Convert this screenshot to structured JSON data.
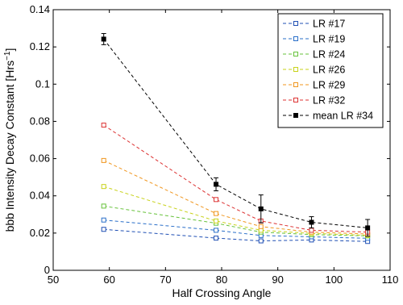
{
  "chart_data": {
    "type": "line",
    "title": "",
    "xlabel": "Half Crossing Angle",
    "ylabel": "bbb Intensity Decay Constant [Hrs",
    "ylabel_sup": "−1",
    "ylabel_end": "]",
    "xlim": [
      50,
      110
    ],
    "ylim": [
      0,
      0.14
    ],
    "xticks": [
      50,
      60,
      70,
      80,
      90,
      100,
      110
    ],
    "yticks": [
      0,
      0.02,
      0.04,
      0.06,
      0.08,
      0.1,
      0.12,
      0.14
    ],
    "ytick_labels": [
      "0",
      "0.02",
      "0.04",
      "0.06",
      "0.08",
      "0.1",
      "0.12",
      "0.14"
    ],
    "grid": false,
    "legend_position": "top-right",
    "series": [
      {
        "name": "LR #17",
        "color": "#1f4fb4",
        "x": [
          59,
          79,
          87,
          96,
          106
        ],
        "y": [
          0.022,
          0.0173,
          0.0158,
          0.0163,
          0.0155
        ]
      },
      {
        "name": "LR #19",
        "color": "#2a6fc9",
        "x": [
          59,
          79,
          87,
          96,
          106
        ],
        "y": [
          0.027,
          0.0215,
          0.0187,
          0.018,
          0.0172
        ]
      },
      {
        "name": "LR #24",
        "color": "#66c23a",
        "x": [
          59,
          79,
          87,
          96,
          106
        ],
        "y": [
          0.0345,
          0.0253,
          0.0205,
          0.0192,
          0.0185
        ]
      },
      {
        "name": "LR #26",
        "color": "#c8d21a",
        "x": [
          59,
          79,
          87,
          96,
          106
        ],
        "y": [
          0.045,
          0.0265,
          0.0215,
          0.0198,
          0.0188
        ]
      },
      {
        "name": "LR #29",
        "color": "#f0961e",
        "x": [
          59,
          79,
          87,
          96,
          106
        ],
        "y": [
          0.059,
          0.0305,
          0.0235,
          0.0205,
          0.0195
        ]
      },
      {
        "name": "LR #32",
        "color": "#dc3232",
        "x": [
          59,
          79,
          87,
          96,
          106
        ],
        "y": [
          0.078,
          0.038,
          0.0265,
          0.0215,
          0.0205
        ]
      },
      {
        "name": "mean LR #34",
        "color": "#000000",
        "x": [
          59,
          79,
          87,
          96,
          106
        ],
        "y": [
          0.1242,
          0.0462,
          0.033,
          0.0258,
          0.0228
        ],
        "yerr": [
          0.003,
          0.0035,
          0.0075,
          0.003,
          0.0045
        ]
      }
    ]
  }
}
